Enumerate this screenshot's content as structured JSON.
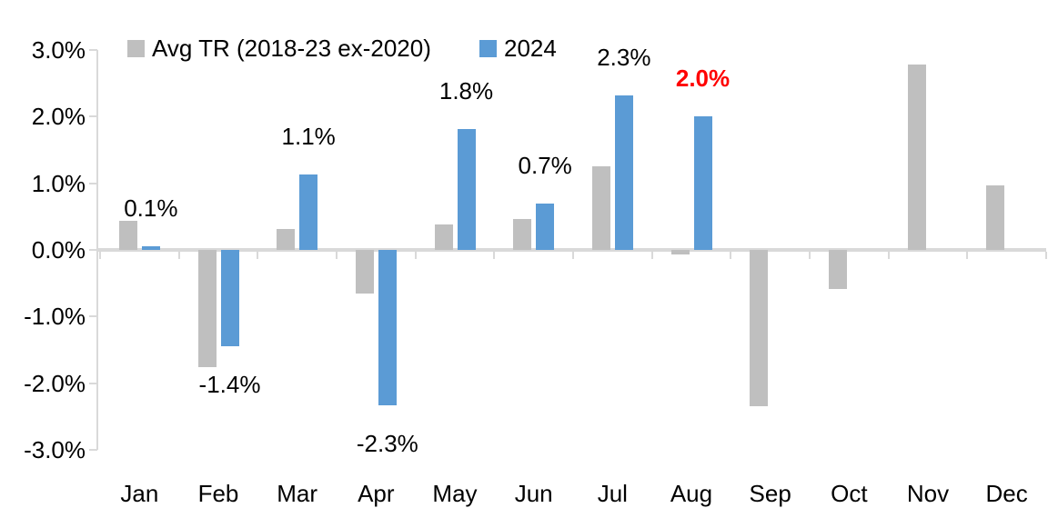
{
  "chart_data": {
    "type": "bar",
    "title": "",
    "xlabel": "",
    "ylabel": "",
    "categories": [
      "Jan",
      "Feb",
      "Mar",
      "Apr",
      "May",
      "Jun",
      "Jul",
      "Aug",
      "Sep",
      "Oct",
      "Nov",
      "Dec"
    ],
    "series": [
      {
        "name": "Avg TR (2018-23 ex-2020)",
        "color": "#BFBFBF",
        "values": [
          0.44,
          -1.76,
          0.31,
          -0.66,
          0.38,
          0.47,
          1.26,
          -0.07,
          -2.35,
          -0.58,
          2.78,
          0.97
        ]
      },
      {
        "name": "2024",
        "color": "#5B9BD5",
        "values": [
          0.05,
          -1.45,
          1.13,
          -2.33,
          1.81,
          0.69,
          2.31,
          2.0,
          null,
          null,
          null,
          null
        ],
        "data_labels": [
          {
            "text": "0.1%",
            "color": "#000000",
            "bold": false
          },
          {
            "text": "-1.4%",
            "color": "#000000",
            "bold": false
          },
          {
            "text": "1.1%",
            "color": "#000000",
            "bold": false
          },
          {
            "text": "-2.3%",
            "color": "#000000",
            "bold": false
          },
          {
            "text": "1.8%",
            "color": "#000000",
            "bold": false
          },
          {
            "text": "0.7%",
            "color": "#000000",
            "bold": false
          },
          {
            "text": "2.3%",
            "color": "#000000",
            "bold": false
          },
          {
            "text": "2.0%",
            "color": "#FF0000",
            "bold": true
          }
        ]
      }
    ],
    "y_axis": {
      "min": -3.0,
      "max": 3.0,
      "step": 1.0,
      "tick_labels": [
        "3.0%",
        "2.0%",
        "1.0%",
        "0.0%",
        "-1.0%",
        "-2.0%",
        "-3.0%"
      ]
    },
    "legend_position": "top",
    "grid": false,
    "axis_color": "#D9D9D9",
    "background_color": "#FFFFFF"
  }
}
